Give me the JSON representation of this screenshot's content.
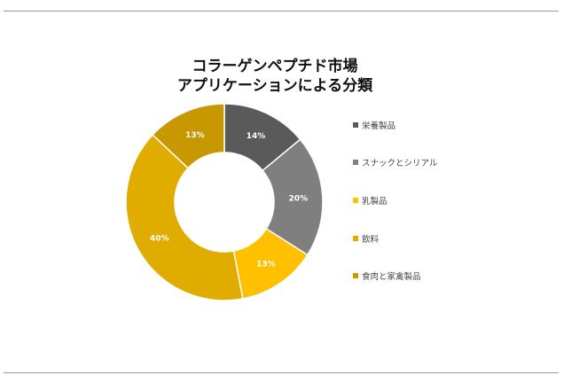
{
  "chart_data": {
    "type": "pie",
    "donut": true,
    "title_lines": [
      "コラーゲンペプチド市場",
      "アプリケーションによる分類"
    ],
    "slices": [
      {
        "label": "栄養製品",
        "value": 14,
        "data_label": "14%",
        "color": "#5a5a5a"
      },
      {
        "label": "スナックとシリアル",
        "value": 20,
        "data_label": "20%",
        "color": "#7f7f7f"
      },
      {
        "label": "乳製品",
        "value": 13,
        "data_label": "13%",
        "color": "#ffc000"
      },
      {
        "label": "飲料",
        "value": 40,
        "data_label": "40%",
        "color": "#e1ac00"
      },
      {
        "label": "食肉と家禽製品",
        "value": 13,
        "data_label": "13%",
        "color": "#c79800"
      }
    ],
    "legend_position": "right"
  }
}
